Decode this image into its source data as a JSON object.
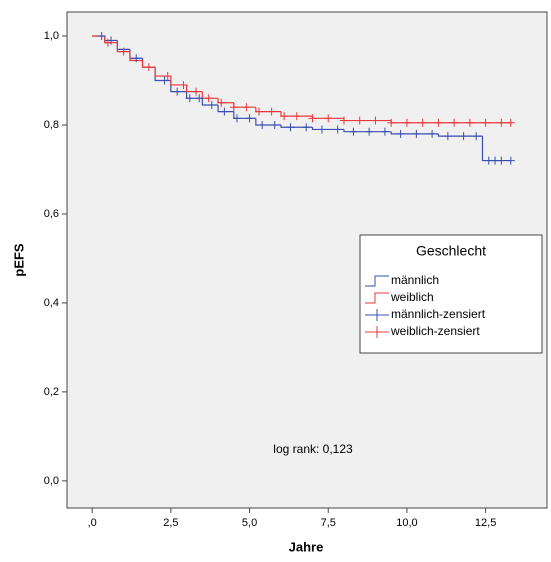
{
  "chart_data": {
    "type": "survival",
    "xlabel": "Jahre",
    "ylabel": "pEFS",
    "annotation": "log rank: 0,123",
    "legend_title": "Geschlecht",
    "legend": "right",
    "xlim": [
      -0.8,
      14.45
    ],
    "ylim": [
      -0.061,
      1.054
    ],
    "xticks": [
      {
        "value": 0,
        "label": ",0"
      },
      {
        "value": 2.5,
        "label": "2,5"
      },
      {
        "value": 5,
        "label": "5,0"
      },
      {
        "value": 7.5,
        "label": "7,5"
      },
      {
        "value": 10,
        "label": "10,0"
      },
      {
        "value": 12.5,
        "label": "12,5"
      }
    ],
    "yticks": [
      {
        "value": 0,
        "label": "0,0"
      },
      {
        "value": 0.2,
        "label": "0,2"
      },
      {
        "value": 0.4,
        "label": "0,4"
      },
      {
        "value": 0.6,
        "label": "0,6"
      },
      {
        "value": 0.8,
        "label": "0,8"
      },
      {
        "value": 1,
        "label": "1,0"
      }
    ],
    "series": [
      {
        "name": "männlich",
        "color": "#3a4db0",
        "drawstyle": "steps-post",
        "x": [
          0,
          0.4,
          0.8,
          1.2,
          1.6,
          2.0,
          2.5,
          3.0,
          3.5,
          4.0,
          4.5,
          5.2,
          6.0,
          7.0,
          8.0,
          9.5,
          11.0,
          12.4,
          13.3
        ],
        "values": [
          1,
          0.99,
          0.97,
          0.95,
          0.93,
          0.9,
          0.875,
          0.86,
          0.845,
          0.83,
          0.815,
          0.8,
          0.795,
          0.79,
          0.785,
          0.78,
          0.775,
          0.72,
          0.72
        ]
      },
      {
        "name": "weiblich",
        "color": "#e8383d",
        "drawstyle": "steps-post",
        "x": [
          0,
          0.4,
          0.8,
          1.2,
          1.6,
          2.0,
          2.5,
          3.0,
          3.5,
          4.0,
          4.5,
          5.2,
          6.0,
          7.0,
          8.0,
          9.5,
          13.3
        ],
        "values": [
          1,
          0.985,
          0.965,
          0.945,
          0.93,
          0.91,
          0.89,
          0.875,
          0.86,
          0.85,
          0.84,
          0.83,
          0.82,
          0.815,
          0.81,
          0.805,
          0.805
        ]
      },
      {
        "name": "männlich-zensiert",
        "color": "#3a4db0",
        "marker": "+",
        "x": [
          0.3,
          0.6,
          1.4,
          2.3,
          2.7,
          3.1,
          3.4,
          3.8,
          4.2,
          4.6,
          5.0,
          5.4,
          5.8,
          6.3,
          6.8,
          7.3,
          7.8,
          8.3,
          8.8,
          9.3,
          9.8,
          10.3,
          10.8,
          11.3,
          11.8,
          12.2,
          12.6,
          12.8,
          13.0,
          13.3
        ],
        "values": [
          1,
          0.99,
          0.95,
          0.9,
          0.875,
          0.86,
          0.86,
          0.845,
          0.83,
          0.815,
          0.815,
          0.8,
          0.8,
          0.795,
          0.795,
          0.79,
          0.79,
          0.785,
          0.785,
          0.785,
          0.78,
          0.78,
          0.78,
          0.775,
          0.775,
          0.775,
          0.72,
          0.72,
          0.72,
          0.72
        ]
      },
      {
        "name": "weiblich-zensiert",
        "color": "#e8383d",
        "marker": "+",
        "x": [
          0.5,
          1.0,
          1.8,
          2.4,
          2.9,
          3.3,
          3.7,
          4.1,
          4.5,
          4.9,
          5.3,
          5.7,
          6.1,
          6.5,
          7.0,
          7.5,
          8.0,
          8.5,
          9.0,
          9.5,
          10.0,
          10.5,
          11.0,
          11.5,
          12.0,
          12.5,
          13.0,
          13.3
        ],
        "values": [
          0.985,
          0.965,
          0.93,
          0.91,
          0.89,
          0.875,
          0.86,
          0.85,
          0.84,
          0.84,
          0.83,
          0.83,
          0.82,
          0.82,
          0.815,
          0.815,
          0.81,
          0.81,
          0.81,
          0.805,
          0.805,
          0.805,
          0.805,
          0.805,
          0.805,
          0.805,
          0.805,
          0.805
        ]
      }
    ]
  }
}
